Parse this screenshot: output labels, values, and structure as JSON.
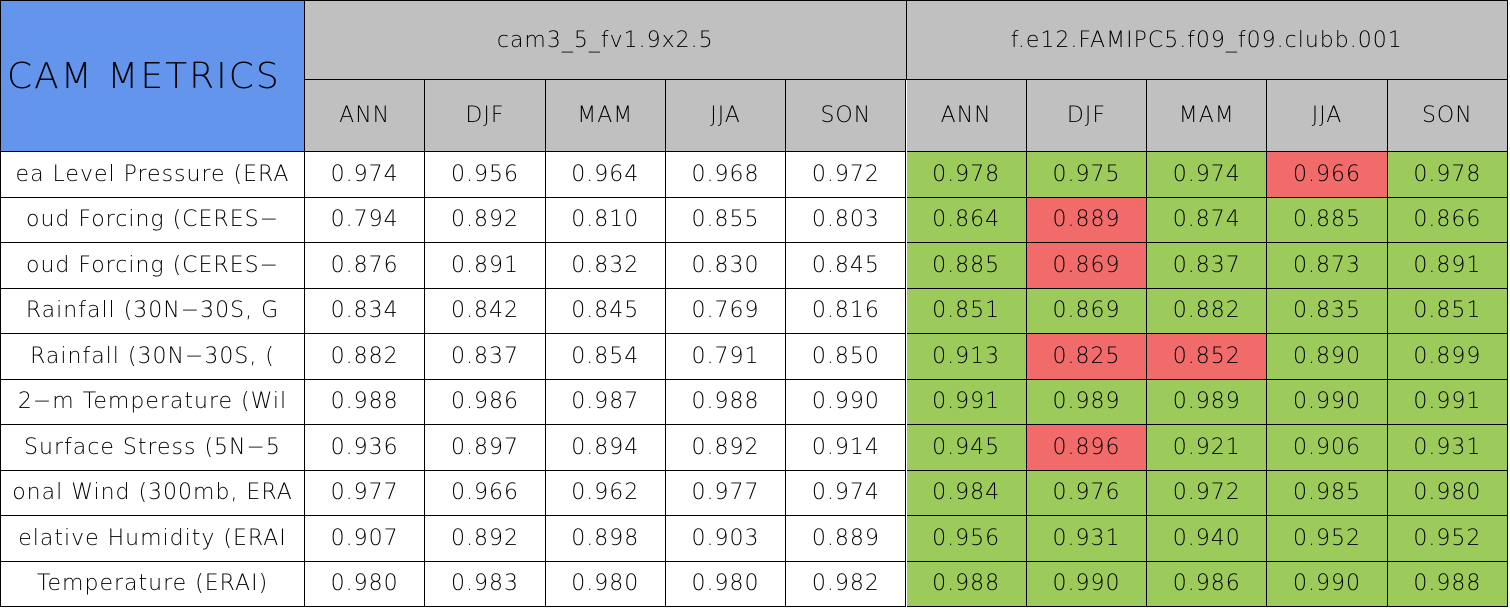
{
  "header": {
    "title": "CAM METRICS",
    "groups": [
      {
        "name": "cam3_5_fv1.9x2.5",
        "seasons": [
          "ANN",
          "DJF",
          "MAM",
          "JJA",
          "SON"
        ]
      },
      {
        "name": "f.e12.FAMIPC5.f09_f09.clubb.001",
        "seasons": [
          "ANN",
          "DJF",
          "MAM",
          "JJA",
          "SON"
        ]
      }
    ]
  },
  "rows": [
    {
      "label": "ea Level Pressure (ERA",
      "values": [
        "0.974",
        "0.956",
        "0.964",
        "0.968",
        "0.972",
        "0.978",
        "0.975",
        "0.974",
        "0.966",
        "0.978"
      ],
      "fills": [
        "#ffffff",
        "#ffffff",
        "#ffffff",
        "#ffffff",
        "#ffffff",
        "#9dcb5b",
        "#9dcb5b",
        "#9dcb5b",
        "#f26b6b",
        "#9dcb5b"
      ]
    },
    {
      "label": "oud Forcing (CERES−",
      "values": [
        "0.794",
        "0.892",
        "0.810",
        "0.855",
        "0.803",
        "0.864",
        "0.889",
        "0.874",
        "0.885",
        "0.866"
      ],
      "fills": [
        "#ffffff",
        "#ffffff",
        "#ffffff",
        "#ffffff",
        "#ffffff",
        "#9dcb5b",
        "#f26b6b",
        "#9dcb5b",
        "#9dcb5b",
        "#9dcb5b"
      ]
    },
    {
      "label": "oud Forcing (CERES−",
      "values": [
        "0.876",
        "0.891",
        "0.832",
        "0.830",
        "0.845",
        "0.885",
        "0.869",
        "0.837",
        "0.873",
        "0.891"
      ],
      "fills": [
        "#ffffff",
        "#ffffff",
        "#ffffff",
        "#ffffff",
        "#ffffff",
        "#9dcb5b",
        "#f26b6b",
        "#9dcb5b",
        "#9dcb5b",
        "#9dcb5b"
      ]
    },
    {
      "label": "Rainfall (30N−30S, G",
      "values": [
        "0.834",
        "0.842",
        "0.845",
        "0.769",
        "0.816",
        "0.851",
        "0.869",
        "0.882",
        "0.835",
        "0.851"
      ],
      "fills": [
        "#ffffff",
        "#ffffff",
        "#ffffff",
        "#ffffff",
        "#ffffff",
        "#9dcb5b",
        "#9dcb5b",
        "#9dcb5b",
        "#9dcb5b",
        "#9dcb5b"
      ]
    },
    {
      "label": "Rainfall (30N−30S, (",
      "values": [
        "0.882",
        "0.837",
        "0.854",
        "0.791",
        "0.850",
        "0.913",
        "0.825",
        "0.852",
        "0.890",
        "0.899"
      ],
      "fills": [
        "#ffffff",
        "#ffffff",
        "#ffffff",
        "#ffffff",
        "#ffffff",
        "#9dcb5b",
        "#f26b6b",
        "#f26b6b",
        "#9dcb5b",
        "#9dcb5b"
      ]
    },
    {
      "label": "2−m Temperature (Wil",
      "values": [
        "0.988",
        "0.986",
        "0.987",
        "0.988",
        "0.990",
        "0.991",
        "0.989",
        "0.989",
        "0.990",
        "0.991"
      ],
      "fills": [
        "#ffffff",
        "#ffffff",
        "#ffffff",
        "#ffffff",
        "#ffffff",
        "#9dcb5b",
        "#9dcb5b",
        "#9dcb5b",
        "#9dcb5b",
        "#9dcb5b"
      ]
    },
    {
      "label": "Surface Stress (5N−5",
      "values": [
        "0.936",
        "0.897",
        "0.894",
        "0.892",
        "0.914",
        "0.945",
        "0.896",
        "0.921",
        "0.906",
        "0.931"
      ],
      "fills": [
        "#ffffff",
        "#ffffff",
        "#ffffff",
        "#ffffff",
        "#ffffff",
        "#9dcb5b",
        "#f26b6b",
        "#9dcb5b",
        "#9dcb5b",
        "#9dcb5b"
      ]
    },
    {
      "label": "onal Wind (300mb, ERA",
      "values": [
        "0.977",
        "0.966",
        "0.962",
        "0.977",
        "0.974",
        "0.984",
        "0.976",
        "0.972",
        "0.985",
        "0.980"
      ],
      "fills": [
        "#ffffff",
        "#ffffff",
        "#ffffff",
        "#ffffff",
        "#ffffff",
        "#9dcb5b",
        "#9dcb5b",
        "#9dcb5b",
        "#9dcb5b",
        "#9dcb5b"
      ]
    },
    {
      "label": "elative Humidity (ERAI",
      "values": [
        "0.907",
        "0.892",
        "0.898",
        "0.903",
        "0.889",
        "0.956",
        "0.931",
        "0.940",
        "0.952",
        "0.952"
      ],
      "fills": [
        "#ffffff",
        "#ffffff",
        "#ffffff",
        "#ffffff",
        "#ffffff",
        "#9dcb5b",
        "#9dcb5b",
        "#9dcb5b",
        "#9dcb5b",
        "#9dcb5b"
      ]
    },
    {
      "label": "Temperature (ERAI)",
      "values": [
        "0.980",
        "0.983",
        "0.980",
        "0.980",
        "0.982",
        "0.988",
        "0.990",
        "0.986",
        "0.990",
        "0.988"
      ],
      "fills": [
        "#ffffff",
        "#ffffff",
        "#ffffff",
        "#ffffff",
        "#ffffff",
        "#9dcb5b",
        "#9dcb5b",
        "#9dcb5b",
        "#9dcb5b",
        "#9dcb5b"
      ]
    }
  ]
}
